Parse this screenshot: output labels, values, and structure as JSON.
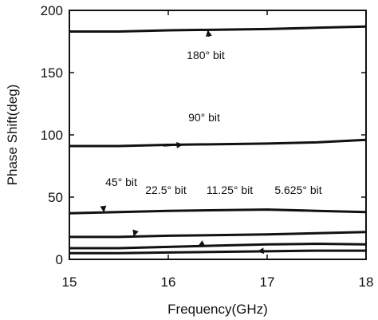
{
  "chart_data": {
    "type": "line",
    "title": "",
    "xlabel": "Frequency(GHz)",
    "ylabel": "Phase Shift(deg)",
    "xlim": [
      15,
      18
    ],
    "ylim": [
      0,
      200
    ],
    "xticks": [
      "15",
      "16",
      "17",
      "18"
    ],
    "yticks": [
      "0",
      "50",
      "100",
      "150",
      "200"
    ],
    "grid": false,
    "legend": "none",
    "x": [
      15,
      15.5,
      16,
      16.5,
      17,
      17.5,
      18
    ],
    "series": [
      {
        "name": "180° bit",
        "values": [
          183,
          183,
          184,
          184.5,
          185,
          186,
          187
        ]
      },
      {
        "name": "90° bit",
        "values": [
          91,
          91,
          92,
          92.5,
          93,
          94,
          96
        ]
      },
      {
        "name": "45° bit",
        "values": [
          37,
          38,
          39,
          39.5,
          40,
          39,
          38
        ]
      },
      {
        "name": "22.5° bit",
        "values": [
          18,
          18,
          19,
          19.5,
          20,
          21,
          22
        ]
      },
      {
        "name": "11.25° bit",
        "values": [
          9,
          9,
          10,
          11,
          12,
          12.5,
          12
        ]
      },
      {
        "name": "5.625° bit",
        "values": [
          5,
          5,
          5.5,
          6,
          6.5,
          7,
          7
        ]
      }
    ],
    "annotations": [
      {
        "text": "180° bit",
        "series": 0,
        "x": 16.4
      },
      {
        "text": "90° bit",
        "series": 1,
        "x": 16.15
      },
      {
        "text": "45° bit",
        "series": 2,
        "x": 15.35
      },
      {
        "text": "22.5° bit",
        "series": 3,
        "x": 15.65
      },
      {
        "text": "11.25° bit",
        "series": 4,
        "x": 16.3
      },
      {
        "text": "5.625° bit",
        "series": 5,
        "x": 16.9
      }
    ]
  }
}
